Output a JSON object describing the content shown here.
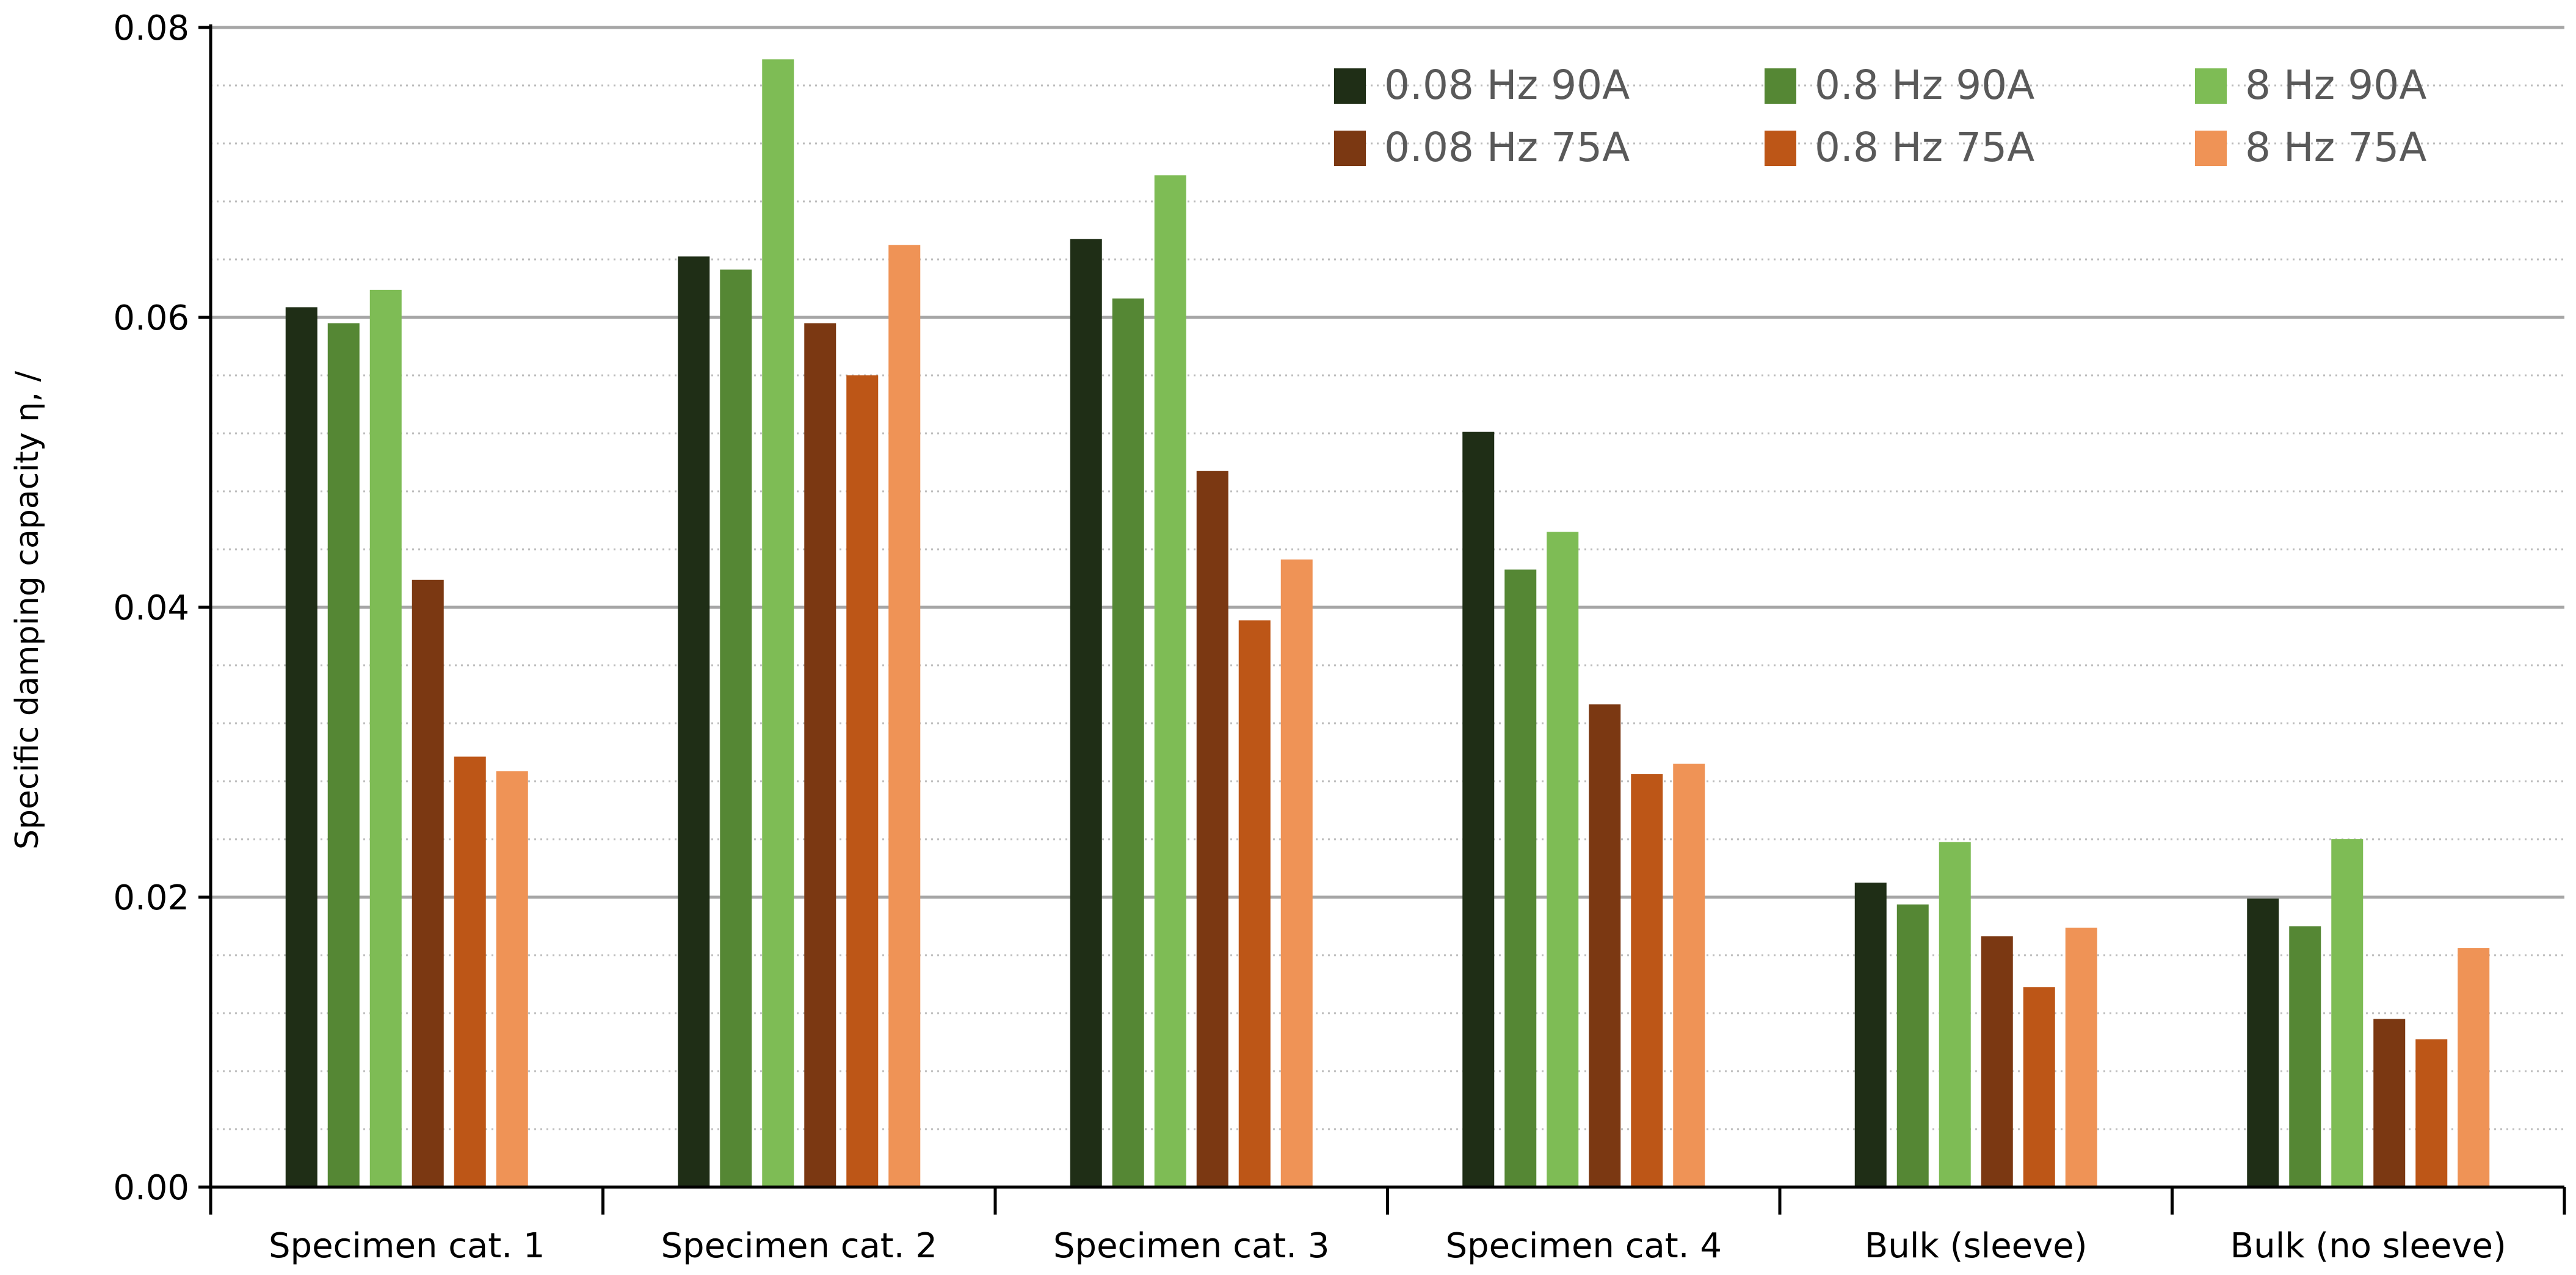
{
  "chart_data": {
    "type": "bar",
    "title": "",
    "xlabel": "",
    "ylabel": "Specific damping capacity  η, /",
    "ylim": [
      0,
      0.08
    ],
    "y_ticks": [
      "0.00",
      "0.02",
      "0.04",
      "0.06",
      "0.08"
    ],
    "y_tick_values": [
      0,
      0.02,
      0.04,
      0.06,
      0.08
    ],
    "grid": "horizontal major and minor",
    "legend_position": "top-right",
    "categories": [
      "Specimen cat. 1",
      "Specimen cat. 2",
      "Specimen cat. 3",
      "Specimen cat. 4",
      "Bulk (sleeve)",
      "Bulk (no sleeve)"
    ],
    "series": [
      {
        "name": "0.08 Hz 90A",
        "color": "#1f2e16",
        "values": [
          0.0607,
          0.0642,
          0.0654,
          0.0521,
          0.021,
          0.0199
        ]
      },
      {
        "name": "0.8 Hz 90A",
        "color": "#558734",
        "values": [
          0.0596,
          0.0633,
          0.0613,
          0.0426,
          0.0195,
          0.018
        ]
      },
      {
        "name": "8 Hz 90A",
        "color": "#7ebc55",
        "values": [
          0.0619,
          0.0778,
          0.0698,
          0.0452,
          0.0238,
          0.024
        ]
      },
      {
        "name": "0.08 Hz 75A",
        "color": "#7b3812",
        "values": [
          0.0419,
          0.0596,
          0.0494,
          0.0333,
          0.0173,
          0.0116
        ]
      },
      {
        "name": "0.8 Hz 75A",
        "color": "#bd5617",
        "values": [
          0.0297,
          0.056,
          0.0391,
          0.0285,
          0.0138,
          0.0102
        ]
      },
      {
        "name": "8 Hz 75A",
        "color": "#ef9356",
        "values": [
          0.0287,
          0.065,
          0.0433,
          0.0292,
          0.0179,
          0.0165
        ]
      }
    ]
  }
}
